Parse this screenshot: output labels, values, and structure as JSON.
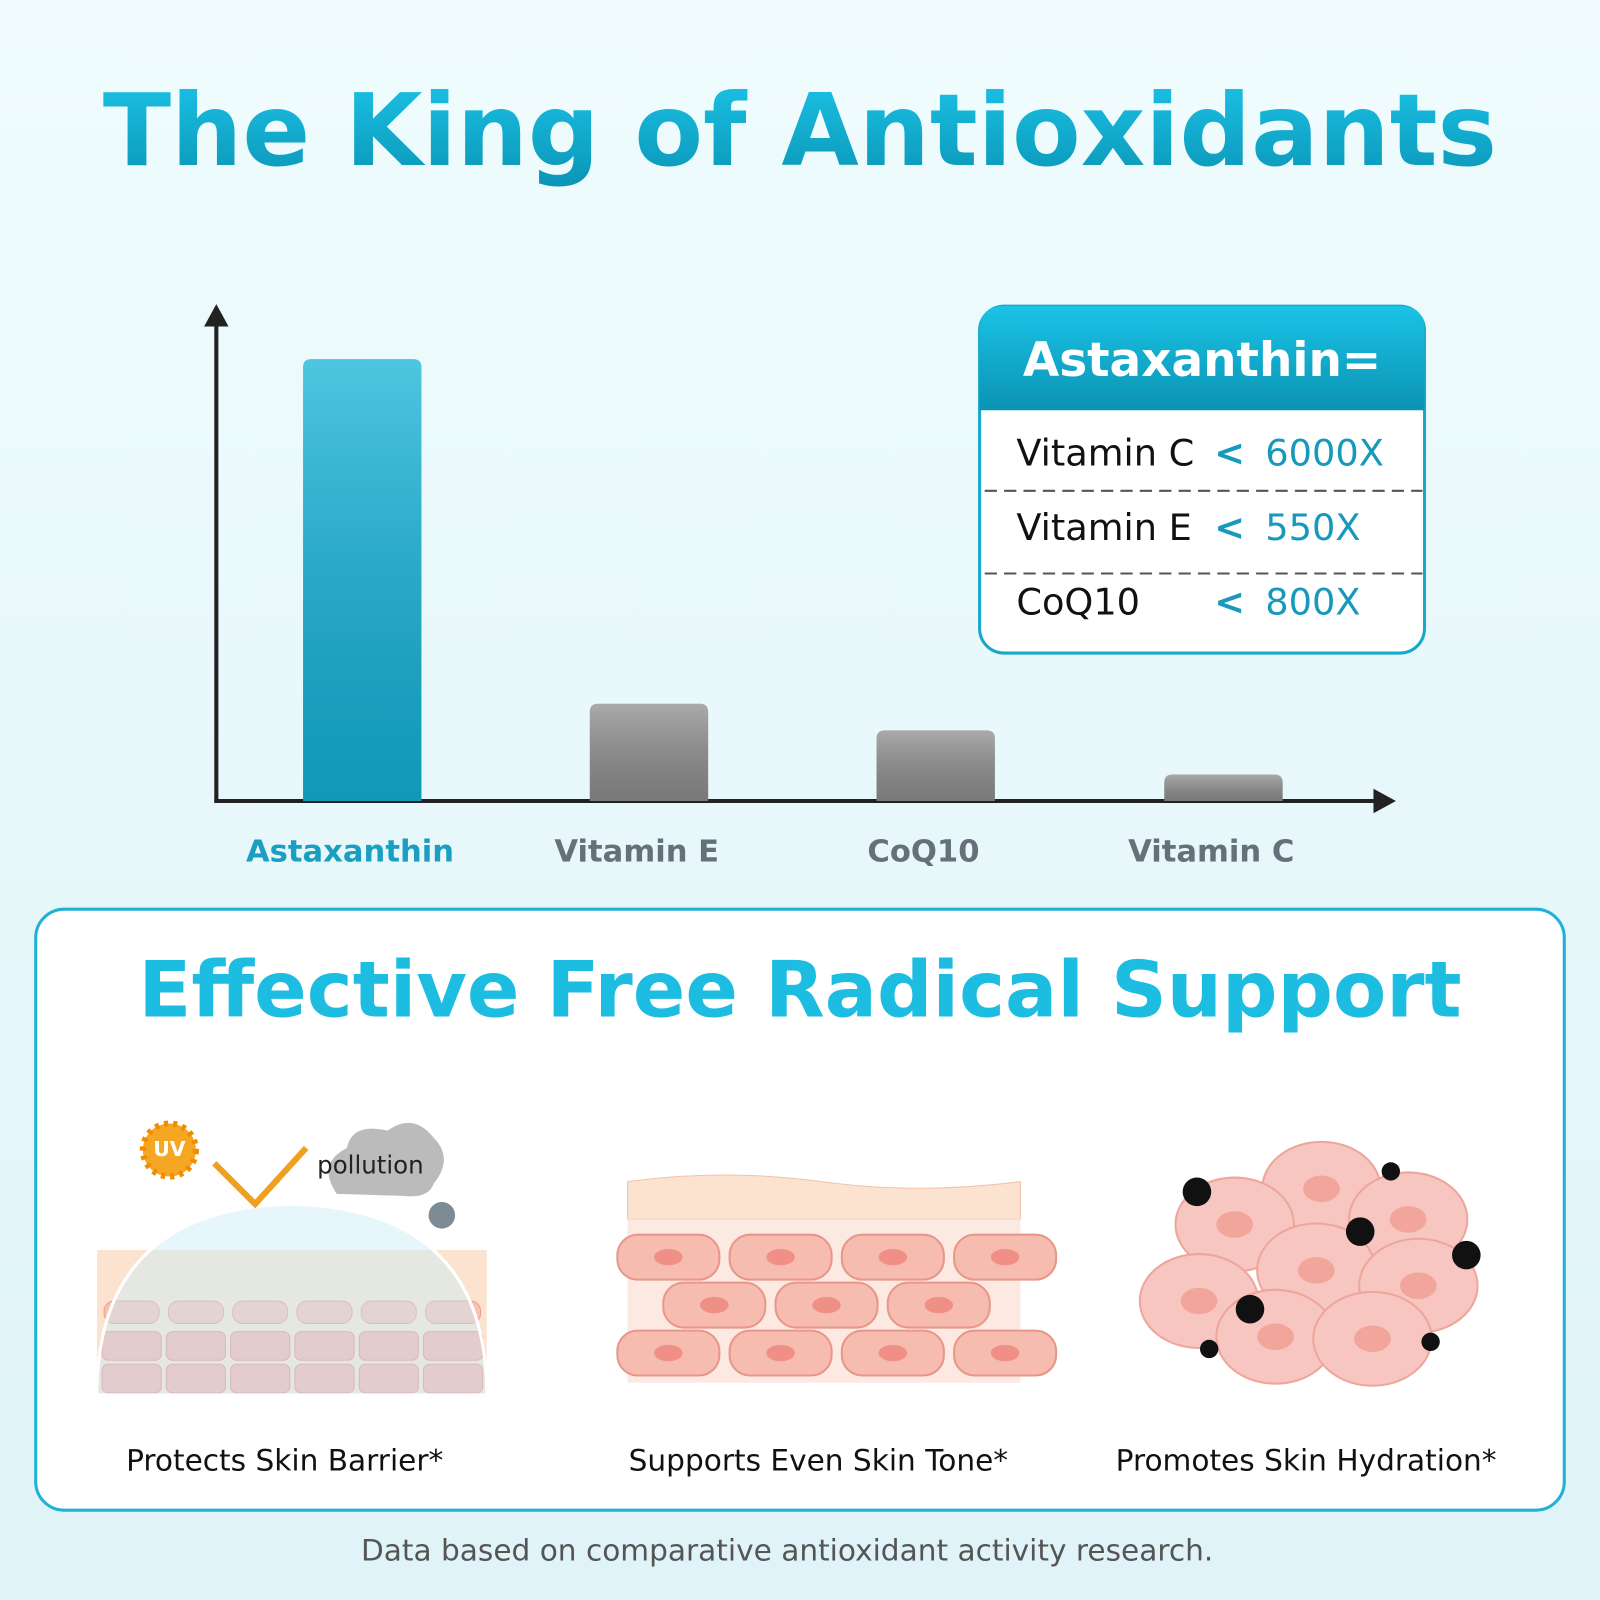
{
  "title": "The King of Antioxidants",
  "chart_data": {
    "type": "bar",
    "categories": [
      "Astaxanthin",
      "Vitamin E",
      "CoQ10",
      "Vitamin C"
    ],
    "values": [
      100,
      22,
      16,
      6
    ],
    "colors": [
      "#13b3d8",
      "#8e8e8e",
      "#8e8e8e",
      "#8e8e8e"
    ],
    "ylim": [
      0,
      112
    ]
  },
  "comparison": {
    "title": "Astaxanthin=",
    "rows": [
      {
        "name": "Vitamin C",
        "symbol": "<",
        "value": "6000X"
      },
      {
        "name": "Vitamin E",
        "symbol": "<",
        "value": "550X"
      },
      {
        "name": "CoQ10",
        "symbol": "<",
        "value": "800X"
      }
    ]
  },
  "benefits": {
    "title": "Effective Free Radical Support",
    "items": [
      "Protects Skin Barrier*",
      "Supports Even Skin Tone*",
      "Promotes Skin Hydration*"
    ],
    "uv": "UV",
    "pollution": "pollution"
  },
  "footnote": "Data based on comparative antioxidant activity research."
}
